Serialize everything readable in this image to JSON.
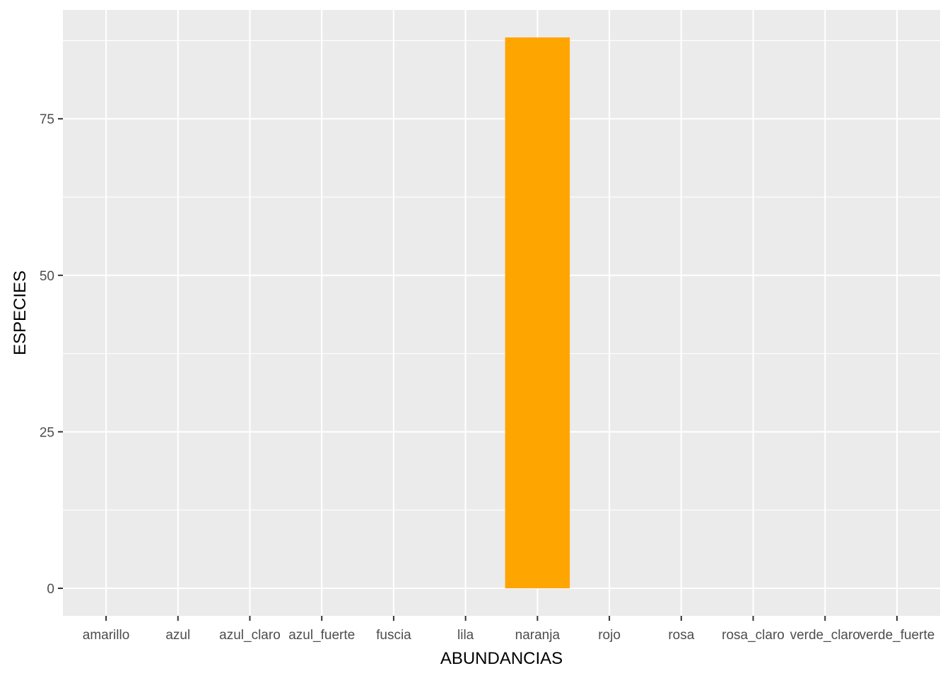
{
  "chart_data": {
    "type": "bar",
    "xlabel": "ABUNDANCIAS",
    "ylabel": "ESPECIES",
    "categories": [
      "amarillo",
      "azul",
      "azul_claro",
      "azul_fuerte",
      "fuscia",
      "lila",
      "naranja",
      "rojo",
      "rosa",
      "rosa_claro",
      "verde_claro",
      "verde_fuerte"
    ],
    "values": [
      0,
      0,
      0,
      0,
      0,
      0,
      88,
      0,
      0,
      0,
      0,
      0
    ],
    "yticks": [
      0,
      25,
      50,
      75
    ],
    "ylim": [
      -4.4,
      92.4
    ],
    "grid": true,
    "legend": "none",
    "colors": {
      "bar": "#FFA500",
      "panel": "#EBEBEB",
      "grid": "#FFFFFF",
      "tick": "#333333"
    }
  }
}
